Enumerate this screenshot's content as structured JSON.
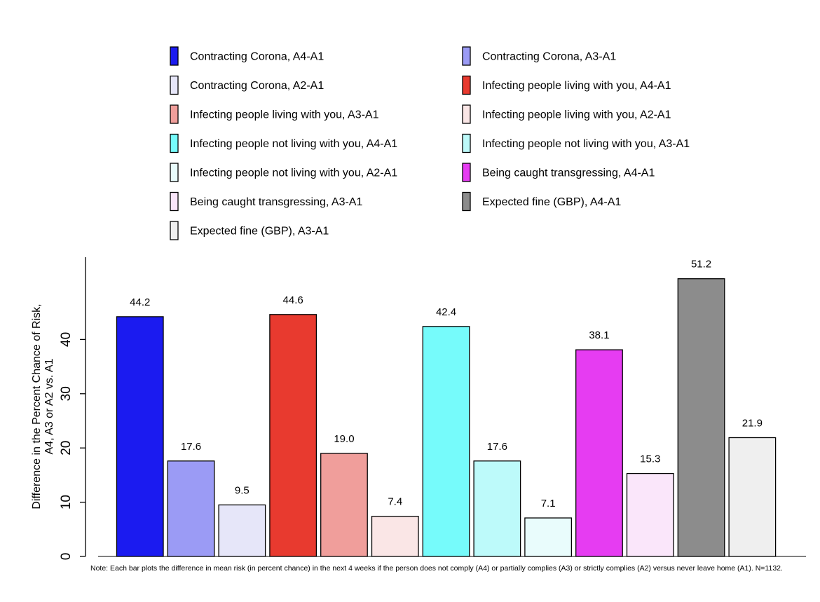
{
  "chart_data": {
    "type": "bar",
    "ylabel_line1": "Difference in the Percent Chance of Risk,",
    "ylabel_line2": "A4, A3 or A2 vs. A1",
    "ylim": [
      0,
      55
    ],
    "yticks": [
      "0",
      "10",
      "20",
      "30",
      "40"
    ],
    "ytick_values": [
      0,
      10,
      20,
      30,
      40
    ],
    "legend_position": "top",
    "series": [
      {
        "name": "Contracting Corona, A4-A1",
        "value": 44.2,
        "label": "44.2",
        "color": "#1b1bf0"
      },
      {
        "name": "Contracting Corona, A3-A1",
        "value": 17.6,
        "label": "17.6",
        "color": "#9b9bf5"
      },
      {
        "name": "Contracting Corona, A2-A1",
        "value": 9.5,
        "label": "9.5",
        "color": "#e6e6f9"
      },
      {
        "name": "Infecting people living with you, A4-A1",
        "value": 44.6,
        "label": "44.6",
        "color": "#e83a2f"
      },
      {
        "name": "Infecting people living with you, A3-A1",
        "value": 19.0,
        "label": "19.0",
        "color": "#f09e9b"
      },
      {
        "name": "Infecting people living with you, A2-A1",
        "value": 7.4,
        "label": "7.4",
        "color": "#fae6e6"
      },
      {
        "name": "Infecting people not living with you, A4-A1",
        "value": 42.4,
        "label": "42.4",
        "color": "#76fbfb"
      },
      {
        "name": "Infecting people not living with you, A3-A1",
        "value": 17.6,
        "label": "17.6",
        "color": "#bdfafa"
      },
      {
        "name": "Infecting people not living with you, A2-A1",
        "value": 7.1,
        "label": "7.1",
        "color": "#e9fcfc"
      },
      {
        "name": "Being caught transgressing, A4-A1",
        "value": 38.1,
        "label": "38.1",
        "color": "#e63cf2"
      },
      {
        "name": "Being caught transgressing, A3-A1",
        "value": 15.3,
        "label": "15.3",
        "color": "#fae6fa"
      },
      {
        "name": "Expected fine (GBP), A4-A1",
        "value": 51.2,
        "label": "51.2",
        "color": "#8c8c8c"
      },
      {
        "name": "Expected fine (GBP), A3-A1",
        "value": 21.9,
        "label": "21.9",
        "color": "#efefef"
      }
    ]
  },
  "note": "Note: Each bar plots the difference in mean risk (in percent chance) in the next 4 weeks if the person does not comply (A4) or partially complies (A3) or strictly complies (A2) versus never leave home (A1). N=1132."
}
